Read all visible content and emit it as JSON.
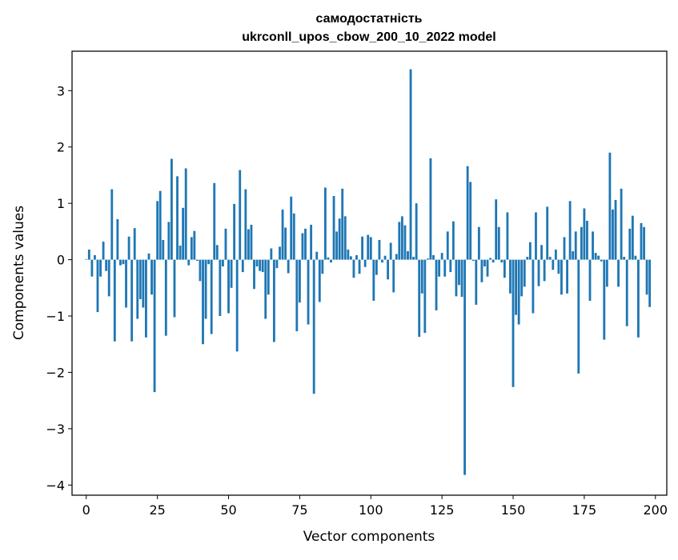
{
  "chart_data": {
    "type": "bar",
    "title": "самодостатність",
    "subtitle": "ukrconll_upos_cbow_200_10_2022 model",
    "xlabel": "Vector components",
    "ylabel": "Components values",
    "xlim": [
      -5,
      204
    ],
    "ylim": [
      -4.18,
      3.7
    ],
    "xticks": [
      0,
      25,
      50,
      75,
      100,
      125,
      150,
      175,
      200
    ],
    "yticks": [
      -4,
      -3,
      -2,
      -1,
      0,
      1,
      2,
      3
    ],
    "ytick_labels": [
      "−4",
      "−3",
      "−2",
      "−1",
      "0",
      "1",
      "2",
      "3"
    ],
    "bar_color": "#1f77b4",
    "grid": false,
    "values": [
      0.01,
      0.18,
      -0.3,
      0.08,
      -0.93,
      -0.3,
      0.32,
      -0.2,
      -0.65,
      1.25,
      -1.45,
      0.72,
      -0.1,
      -0.08,
      -0.85,
      0.41,
      -1.45,
      0.56,
      -1.05,
      -0.7,
      -0.85,
      -1.38,
      0.11,
      -0.62,
      -2.35,
      1.04,
      1.22,
      0.35,
      -1.35,
      0.67,
      1.79,
      -1.02,
      1.48,
      0.25,
      0.92,
      1.62,
      -0.1,
      0.4,
      0.51,
      -0.02,
      -0.38,
      -1.5,
      -1.05,
      -0.08,
      -1.32,
      1.36,
      0.26,
      -1.0,
      -0.12,
      0.55,
      -0.95,
      -0.5,
      0.99,
      -1.63,
      1.59,
      -0.22,
      1.25,
      0.54,
      0.62,
      -0.52,
      -0.12,
      -0.2,
      -0.22,
      -1.05,
      -0.62,
      0.2,
      -1.46,
      -0.15,
      0.23,
      0.89,
      0.57,
      -0.24,
      1.12,
      0.82,
      -1.27,
      -0.76,
      0.47,
      0.55,
      -1.15,
      0.62,
      -2.38,
      0.14,
      -0.75,
      -0.25,
      1.28,
      0.04,
      -0.05,
      1.13,
      0.5,
      0.73,
      1.26,
      0.77,
      0.18,
      0.06,
      -0.32,
      0.08,
      -0.25,
      0.41,
      -0.13,
      0.44,
      0.4,
      -0.73,
      -0.27,
      0.35,
      -0.05,
      0.07,
      -0.35,
      0.3,
      -0.58,
      0.1,
      0.67,
      0.77,
      0.61,
      0.15,
      3.38,
      0.05,
      1.0,
      -1.37,
      -0.6,
      -1.3,
      0.02,
      1.8,
      0.08,
      -0.9,
      -0.3,
      0.12,
      -0.3,
      0.5,
      -0.22,
      0.68,
      -0.65,
      -0.45,
      -0.66,
      -3.82,
      1.66,
      1.38,
      -0.02,
      -0.8,
      0.58,
      -0.4,
      -0.12,
      -0.3,
      0.03,
      -0.05,
      1.07,
      0.58,
      -0.05,
      -0.32,
      0.84,
      -0.6,
      -2.26,
      -0.98,
      -1.15,
      -0.65,
      -0.48,
      0.05,
      0.31,
      -0.95,
      0.84,
      -0.47,
      0.26,
      -0.38,
      0.94,
      0.05,
      -0.18,
      0.18,
      -0.25,
      -0.62,
      0.4,
      -0.6,
      1.04,
      0.15,
      0.5,
      -2.02,
      0.58,
      0.91,
      0.69,
      -0.73,
      0.5,
      0.12,
      0.07,
      -0.03,
      -1.42,
      -0.48,
      1.9,
      0.89,
      1.06,
      -0.48,
      1.26,
      0.05,
      -1.18,
      0.55,
      0.78,
      0.07,
      -1.38,
      0.65,
      0.58,
      -0.62,
      -0.84
    ]
  }
}
